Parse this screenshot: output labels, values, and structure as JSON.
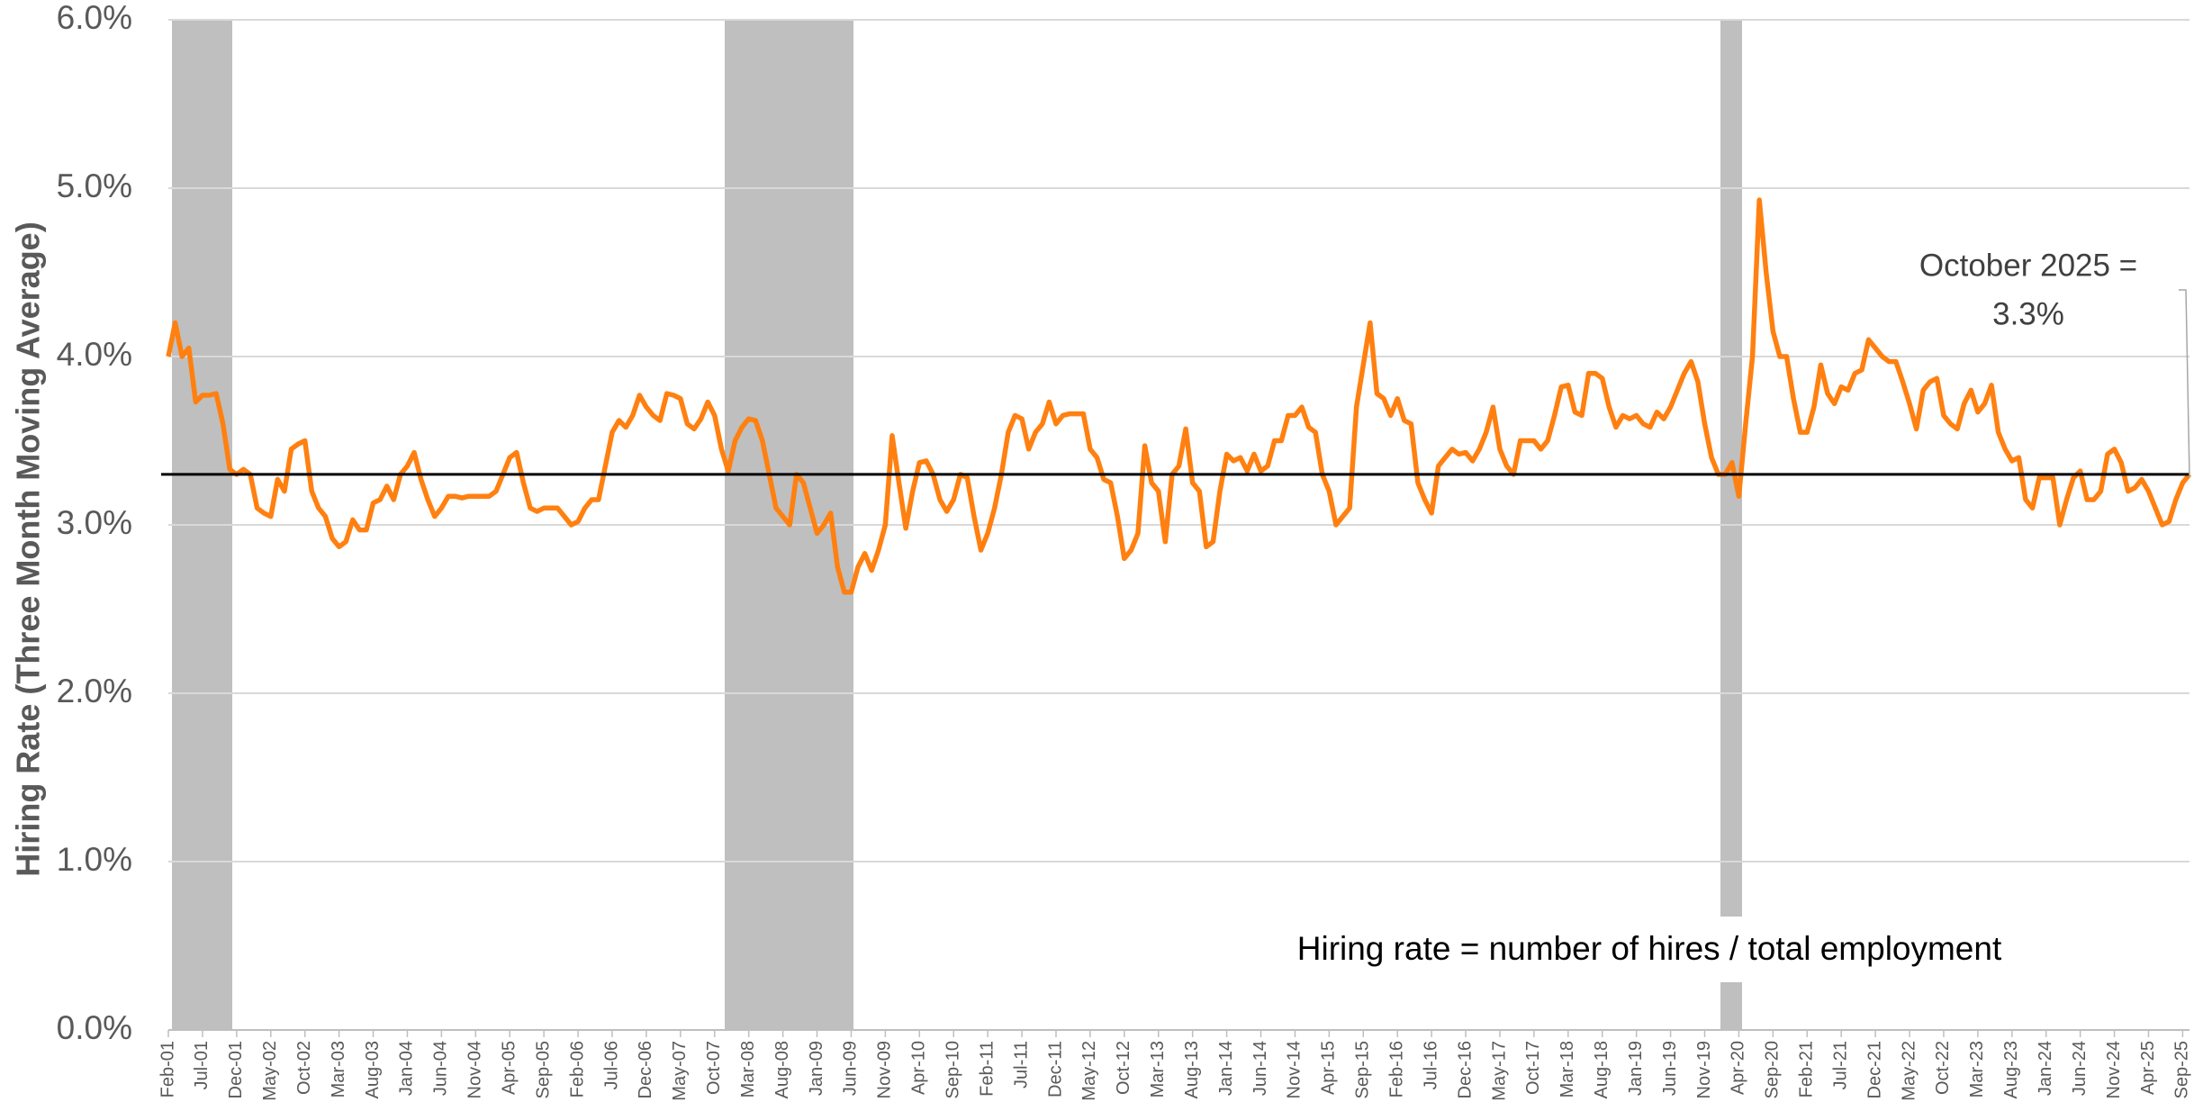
{
  "chart_data": {
    "type": "line",
    "y_label": "Hiring Rate (Three Month Moving Average)",
    "annotations": [
      "October 2025 =",
      "3.3%",
      "Hiring rate = number of hires / total employment"
    ],
    "color": "#ff8010",
    "grid": true,
    "reference_line": {
      "value": 3.3,
      "color": "#000000"
    },
    "ylim": [
      0,
      6
    ],
    "yticks": [
      {
        "value": 0,
        "label": "0.0%"
      },
      {
        "value": 1,
        "label": "1.0%"
      },
      {
        "value": 2,
        "label": "2.0%"
      },
      {
        "value": 3,
        "label": "3.0%"
      },
      {
        "value": 4,
        "label": "4.0%"
      },
      {
        "value": 5,
        "label": "5.0%"
      },
      {
        "value": 6,
        "label": "6.0%"
      }
    ],
    "categories": [
      "Feb-01",
      null,
      null,
      null,
      null,
      "Jul-01",
      null,
      null,
      null,
      null,
      "Dec-01",
      null,
      null,
      null,
      null,
      "May-02",
      null,
      null,
      null,
      null,
      "Oct-02",
      null,
      null,
      null,
      null,
      "Mar-03",
      null,
      null,
      null,
      null,
      "Aug-03",
      null,
      null,
      null,
      null,
      "Jan-04",
      null,
      null,
      null,
      null,
      "Jun-04",
      null,
      null,
      null,
      null,
      "Nov-04",
      null,
      null,
      null,
      null,
      "Apr-05",
      null,
      null,
      null,
      null,
      "Sep-05",
      null,
      null,
      null,
      null,
      "Feb-06",
      null,
      null,
      null,
      null,
      "Jul-06",
      null,
      null,
      null,
      null,
      "Dec-06",
      null,
      null,
      null,
      null,
      "May-07",
      null,
      null,
      null,
      null,
      "Oct-07",
      null,
      null,
      null,
      null,
      "Mar-08",
      null,
      null,
      null,
      null,
      "Aug-08",
      null,
      null,
      null,
      null,
      "Jan-09",
      null,
      null,
      null,
      null,
      "Jun-09",
      null,
      null,
      null,
      null,
      "Nov-09",
      null,
      null,
      null,
      null,
      "Apr-10",
      null,
      null,
      null,
      null,
      "Sep-10",
      null,
      null,
      null,
      null,
      "Feb-11",
      null,
      null,
      null,
      null,
      "Jul-11",
      null,
      null,
      null,
      null,
      "Dec-11",
      null,
      null,
      null,
      null,
      "May-12",
      null,
      null,
      null,
      null,
      "Oct-12",
      null,
      null,
      null,
      null,
      "Mar-13",
      null,
      null,
      null,
      null,
      "Aug-13",
      null,
      null,
      null,
      null,
      "Jan-14",
      null,
      null,
      null,
      null,
      "Jun-14",
      null,
      null,
      null,
      null,
      "Nov-14",
      null,
      null,
      null,
      null,
      "Apr-15",
      null,
      null,
      null,
      null,
      "Sep-15",
      null,
      null,
      null,
      null,
      "Feb-16",
      null,
      null,
      null,
      null,
      "Jul-16",
      null,
      null,
      null,
      null,
      "Dec-16",
      null,
      null,
      null,
      null,
      "May-17",
      null,
      null,
      null,
      null,
      "Oct-17",
      null,
      null,
      null,
      null,
      "Mar-18",
      null,
      null,
      null,
      null,
      "Aug-18",
      null,
      null,
      null,
      null,
      "Jan-19",
      null,
      null,
      null,
      null,
      "Jun-19",
      null,
      null,
      null,
      null,
      "Nov-19",
      null,
      null,
      null,
      null,
      "Apr-20",
      null,
      null,
      null,
      null,
      "Sep-20",
      null,
      null,
      null,
      null,
      "Feb-21",
      null,
      null,
      null,
      null,
      "Jul-21",
      null,
      null,
      null,
      null,
      "Dec-21",
      null,
      null,
      null,
      null,
      "May-22",
      null,
      null,
      null,
      null,
      "Oct-22",
      null,
      null,
      null,
      null,
      "Mar-23",
      null,
      null,
      null,
      null,
      "Aug-23",
      null,
      null,
      null,
      null,
      "Jan-24",
      null,
      null,
      null,
      null,
      "Jun-24",
      null,
      null,
      null,
      null,
      "Nov-24",
      null,
      null,
      null,
      null,
      "Apr-25",
      null,
      null,
      null,
      null,
      "Sep-25",
      null
    ],
    "values": [
      4.0,
      4.2,
      4.0,
      4.05,
      3.73,
      3.77,
      3.77,
      3.78,
      3.6,
      3.33,
      3.3,
      3.33,
      3.3,
      3.1,
      3.07,
      3.05,
      3.27,
      3.2,
      3.45,
      3.48,
      3.5,
      3.2,
      3.1,
      3.05,
      2.92,
      2.87,
      2.9,
      3.03,
      2.97,
      2.97,
      3.13,
      3.15,
      3.23,
      3.15,
      3.3,
      3.35,
      3.43,
      3.27,
      3.15,
      3.05,
      3.1,
      3.17,
      3.17,
      3.16,
      3.17,
      3.17,
      3.17,
      3.17,
      3.2,
      3.3,
      3.4,
      3.43,
      3.25,
      3.1,
      3.08,
      3.1,
      3.1,
      3.1,
      3.05,
      3.0,
      3.02,
      3.1,
      3.15,
      3.15,
      3.35,
      3.55,
      3.62,
      3.58,
      3.65,
      3.77,
      3.7,
      3.65,
      3.62,
      3.78,
      3.77,
      3.75,
      3.6,
      3.57,
      3.63,
      3.73,
      3.65,
      3.45,
      3.32,
      3.5,
      3.58,
      3.63,
      3.62,
      3.5,
      3.3,
      3.1,
      3.05,
      3.0,
      3.3,
      3.25,
      3.1,
      2.95,
      3.0,
      3.07,
      2.75,
      2.6,
      2.6,
      2.75,
      2.83,
      2.73,
      2.85,
      3.0,
      3.53,
      3.25,
      2.98,
      3.2,
      3.37,
      3.38,
      3.3,
      3.15,
      3.08,
      3.15,
      3.3,
      3.28,
      3.05,
      2.85,
      2.95,
      3.1,
      3.3,
      3.55,
      3.65,
      3.63,
      3.45,
      3.55,
      3.6,
      3.73,
      3.6,
      3.65,
      3.66,
      3.66,
      3.66,
      3.45,
      3.4,
      3.27,
      3.25,
      3.05,
      2.8,
      2.85,
      2.95,
      3.47,
      3.25,
      3.2,
      2.9,
      3.3,
      3.35,
      3.57,
      3.25,
      3.2,
      2.87,
      2.9,
      3.2,
      3.42,
      3.38,
      3.4,
      3.32,
      3.42,
      3.32,
      3.35,
      3.5,
      3.5,
      3.65,
      3.65,
      3.7,
      3.58,
      3.55,
      3.3,
      3.2,
      3.0,
      3.05,
      3.1,
      3.7,
      3.95,
      4.2,
      3.78,
      3.75,
      3.65,
      3.75,
      3.62,
      3.6,
      3.25,
      3.15,
      3.07,
      3.35,
      3.4,
      3.45,
      3.42,
      3.43,
      3.38,
      3.45,
      3.55,
      3.7,
      3.45,
      3.35,
      3.3,
      3.5,
      3.5,
      3.5,
      3.45,
      3.5,
      3.65,
      3.82,
      3.83,
      3.67,
      3.65,
      3.9,
      3.9,
      3.87,
      3.7,
      3.58,
      3.65,
      3.63,
      3.65,
      3.6,
      3.58,
      3.67,
      3.63,
      3.7,
      3.8,
      3.9,
      3.97,
      3.85,
      3.6,
      3.4,
      3.3,
      3.3,
      3.37,
      3.17,
      3.6,
      4.0,
      4.93,
      4.5,
      4.15,
      4.0,
      4.0,
      3.75,
      3.55,
      3.55,
      3.7,
      3.95,
      3.78,
      3.72,
      3.82,
      3.8,
      3.9,
      3.92,
      4.1,
      4.05,
      4.0,
      3.97,
      3.97,
      3.85,
      3.72,
      3.57,
      3.8,
      3.85,
      3.87,
      3.65,
      3.6,
      3.57,
      3.72,
      3.8,
      3.67,
      3.72,
      3.83,
      3.55,
      3.45,
      3.38,
      3.4,
      3.15,
      3.1,
      3.28,
      3.28,
      3.28,
      3.0,
      3.15,
      3.28,
      3.32,
      3.15,
      3.15,
      3.2,
      3.42,
      3.45,
      3.37,
      3.2,
      3.22,
      3.27,
      3.2,
      3.1,
      3.0,
      3.02,
      3.15,
      3.25,
      3.3
    ]
  }
}
